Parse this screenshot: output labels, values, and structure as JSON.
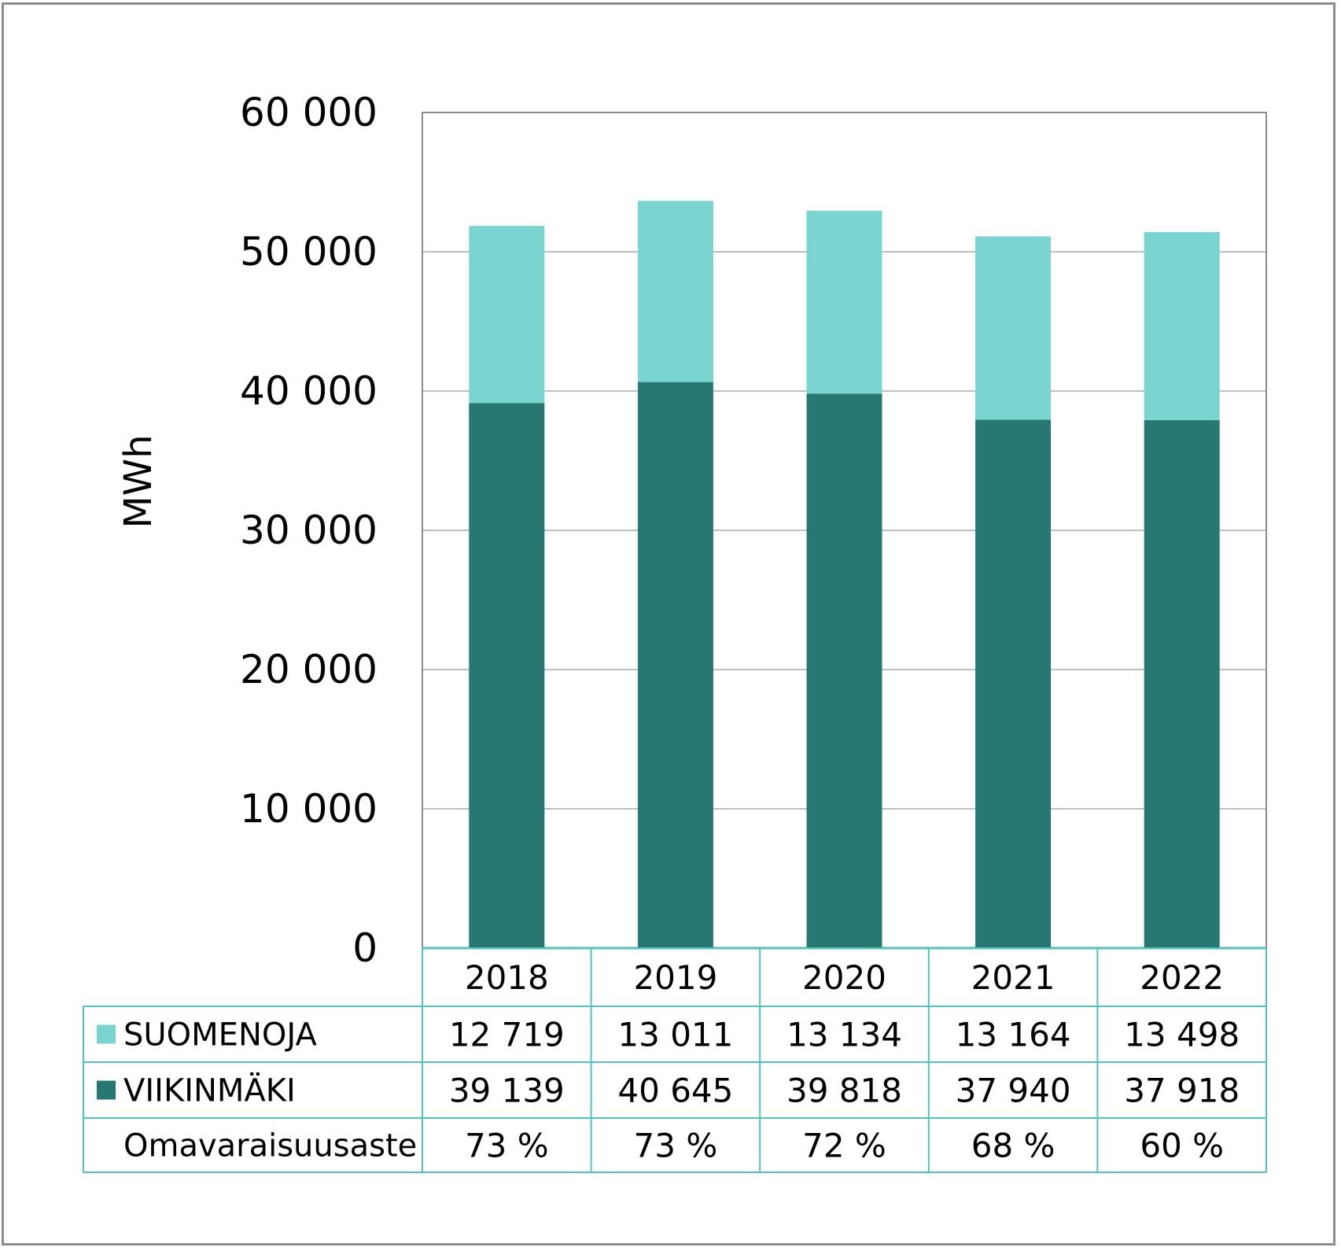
{
  "chart_data": {
    "type": "bar",
    "stacked": true,
    "title": "",
    "xlabel": "",
    "ylabel": "MWh",
    "ylim": [
      0,
      60000
    ],
    "yticks": [
      0,
      10000,
      20000,
      30000,
      40000,
      50000,
      60000
    ],
    "ytick_labels": [
      "0",
      "10 000",
      "20 000",
      "30 000",
      "40 000",
      "50 000",
      "60 000"
    ],
    "categories": [
      "2018",
      "2019",
      "2020",
      "2021",
      "2022"
    ],
    "series": [
      {
        "name": "VIIKINMÄKI",
        "color": "#277873",
        "values": [
          39139,
          40645,
          39818,
          37940,
          37918
        ],
        "labels": [
          "39 139",
          "40 645",
          "39 818",
          "37 940",
          "37 918"
        ]
      },
      {
        "name": "SUOMENOJA",
        "color": "#7ad4cf",
        "values": [
          12719,
          13011,
          13134,
          13164,
          13498
        ],
        "labels": [
          "12 719",
          "13 011",
          "13 134",
          "13 164",
          "13 498"
        ]
      }
    ],
    "data_table": {
      "rows": [
        {
          "label": "SUOMENOJA",
          "legend_color": "#7ad4cf",
          "cells": [
            "12 719",
            "13 011",
            "13 134",
            "13 164",
            "13 498"
          ]
        },
        {
          "label": "VIIKINMÄKI",
          "legend_color": "#277873",
          "cells": [
            "39 139",
            "40 645",
            "39 818",
            "37 940",
            "37 918"
          ]
        },
        {
          "label": "Omavaraisuusaste",
          "legend_color": null,
          "cells": [
            "73 %",
            "73 %",
            "72 %",
            "68 %",
            "60 %"
          ]
        }
      ]
    },
    "grid": true,
    "colors": {
      "gridline": "#bfbfbf",
      "plot_border": "#8c8c8c",
      "table_border": "#4fc3bd",
      "frame": "#8c8c8c"
    }
  }
}
